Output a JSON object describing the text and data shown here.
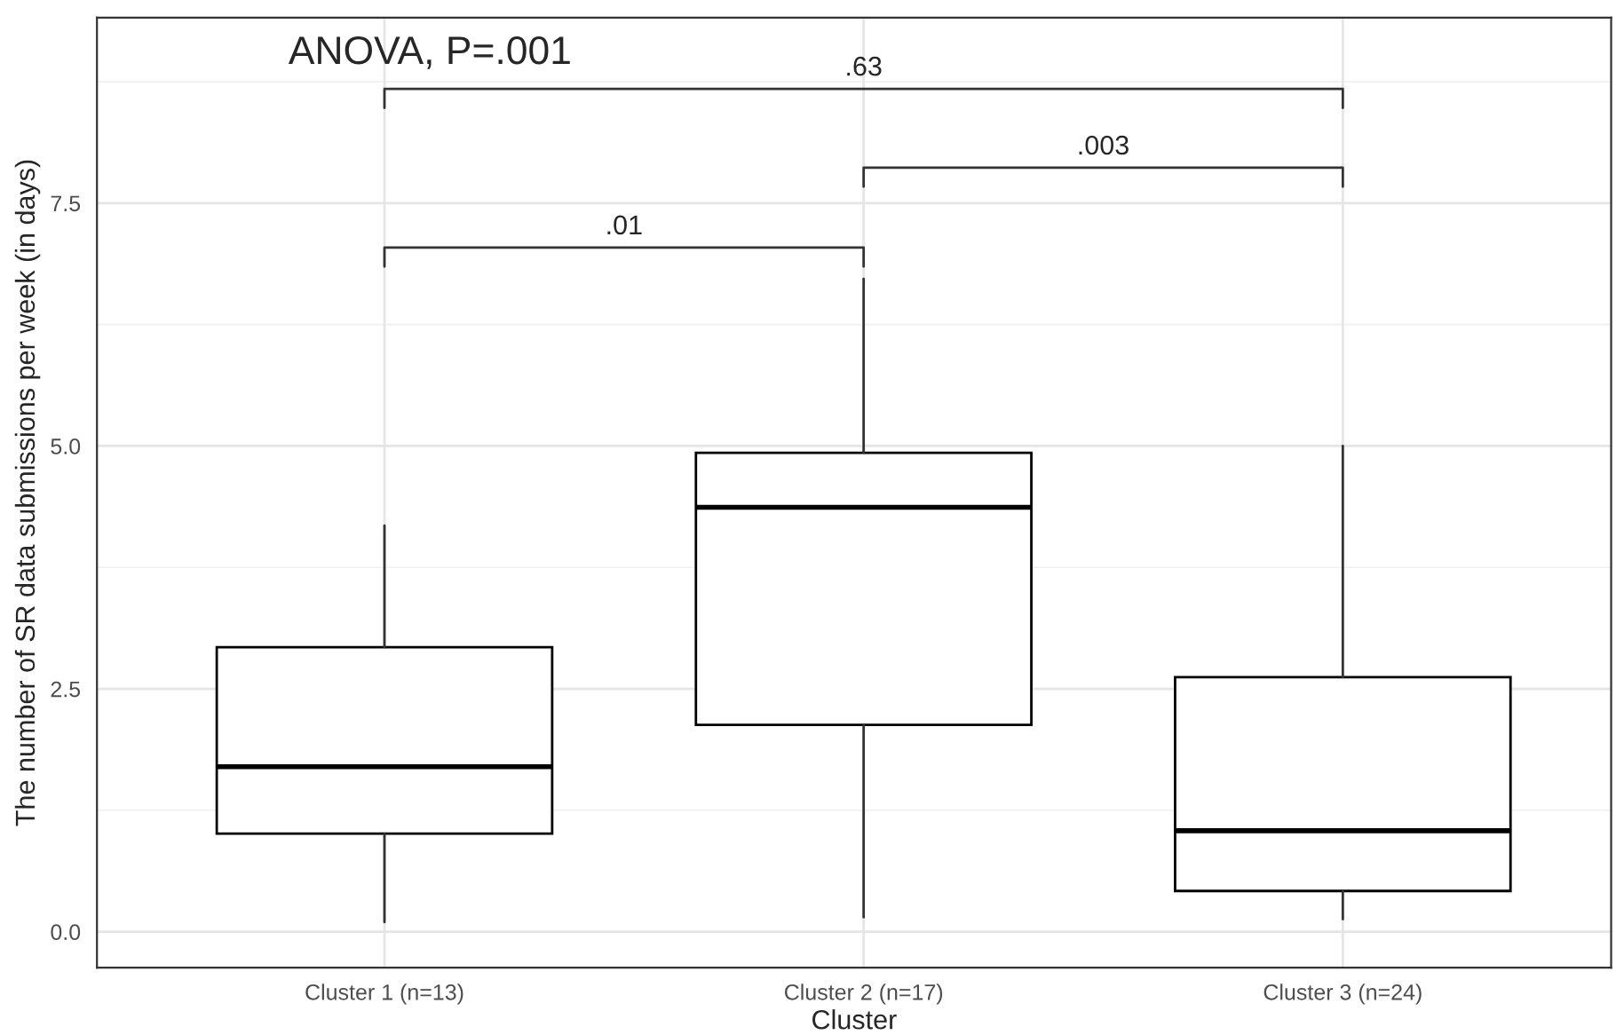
{
  "chart_data": {
    "type": "box",
    "categories": [
      "Cluster 1 (n=13)",
      "Cluster 2 (n=17)",
      "Cluster 3 (n=24)"
    ],
    "boxes": [
      {
        "low": 0.1,
        "q1": 1.01,
        "median": 1.7,
        "q3": 2.93,
        "high": 4.18
      },
      {
        "low": 0.15,
        "q1": 2.13,
        "median": 4.37,
        "q3": 4.93,
        "high": 6.72
      },
      {
        "low": 0.13,
        "q1": 0.42,
        "median": 1.04,
        "q3": 2.62,
        "high": 5.0
      }
    ],
    "color": "#000000",
    "xlabel": "Cluster",
    "ylabel": "The number of SR data submissions per week (in days)",
    "ylim": [
      -0.37,
      9.41
    ],
    "yticks": [
      {
        "value": 0,
        "label": "0.0"
      },
      {
        "value": 2.5,
        "label": "2.5"
      },
      {
        "value": 5,
        "label": "5.0"
      },
      {
        "value": 7.5,
        "label": "7.5"
      }
    ],
    "grid": true,
    "annotations": [
      "ANOVA, P=.001",
      ".01",
      ".003",
      ".63"
    ]
  }
}
